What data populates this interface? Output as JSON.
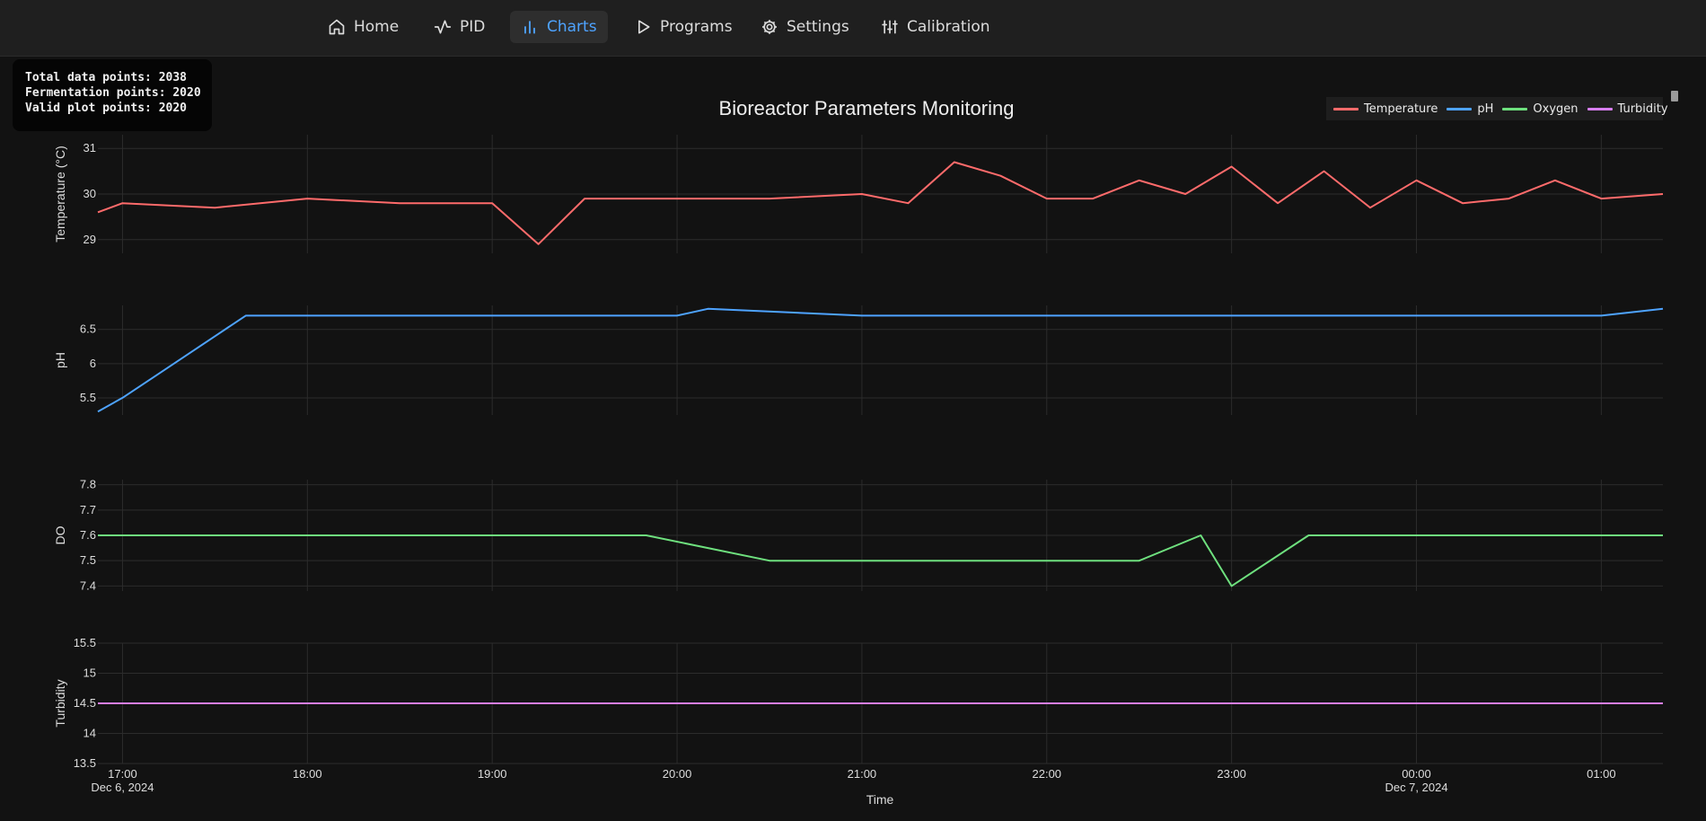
{
  "nav": {
    "items": [
      {
        "label": "Home",
        "icon": "home-icon",
        "active": false
      },
      {
        "label": "PID",
        "icon": "activity-icon",
        "active": false
      },
      {
        "label": "Charts",
        "icon": "bar-chart-icon",
        "active": true
      },
      {
        "label": "Programs",
        "icon": "play-icon",
        "active": false
      },
      {
        "label": "Settings",
        "icon": "gear-icon",
        "active": false
      },
      {
        "label": "Calibration",
        "icon": "sliders-icon",
        "active": false
      }
    ],
    "active_color": "#4ea3ff"
  },
  "stats": {
    "total": "Total data points: 2038",
    "fermentation": "Fermentation points: 2020",
    "valid": "Valid plot points: 2020"
  },
  "chart_data": {
    "type": "line",
    "title": "Bioreactor Parameters Monitoring",
    "xlabel": "Time",
    "x_range": [
      "2024-12-06 16:52",
      "2024-12-07 01:20"
    ],
    "x_ticks": [
      {
        "label": "17:00",
        "sub": "Dec 6, 2024",
        "time": "2024-12-06 17:00"
      },
      {
        "label": "18:00",
        "sub": "",
        "time": "2024-12-06 18:00"
      },
      {
        "label": "19:00",
        "sub": "",
        "time": "2024-12-06 19:00"
      },
      {
        "label": "20:00",
        "sub": "",
        "time": "2024-12-06 20:00"
      },
      {
        "label": "21:00",
        "sub": "",
        "time": "2024-12-06 21:00"
      },
      {
        "label": "22:00",
        "sub": "",
        "time": "2024-12-06 22:00"
      },
      {
        "label": "23:00",
        "sub": "",
        "time": "2024-12-06 23:00"
      },
      {
        "label": "00:00",
        "sub": "Dec 7, 2024",
        "time": "2024-12-07 00:00"
      },
      {
        "label": "01:00",
        "sub": "",
        "time": "2024-12-07 01:00"
      }
    ],
    "legend_position": "top-right",
    "grid": true,
    "series": [
      {
        "name": "Temperature",
        "ylabel": "Temperature (°C)",
        "color": "#ff6b6b",
        "ylim": [
          28.7,
          31.3
        ],
        "yticks": [
          29,
          30,
          31
        ],
        "x": [
          "2024-12-06 16:52",
          "2024-12-06 17:00",
          "2024-12-06 17:30",
          "2024-12-06 18:00",
          "2024-12-06 18:30",
          "2024-12-06 19:00",
          "2024-12-06 19:15",
          "2024-12-06 19:30",
          "2024-12-06 20:00",
          "2024-12-06 20:30",
          "2024-12-06 21:00",
          "2024-12-06 21:15",
          "2024-12-06 21:30",
          "2024-12-06 21:45",
          "2024-12-06 22:00",
          "2024-12-06 22:15",
          "2024-12-06 22:30",
          "2024-12-06 22:45",
          "2024-12-06 23:00",
          "2024-12-06 23:15",
          "2024-12-06 23:30",
          "2024-12-06 23:45",
          "2024-12-07 00:00",
          "2024-12-07 00:15",
          "2024-12-07 00:30",
          "2024-12-07 00:45",
          "2024-12-07 01:00",
          "2024-12-07 01:20"
        ],
        "values": [
          29.6,
          29.8,
          29.7,
          29.9,
          29.8,
          29.8,
          28.9,
          29.9,
          29.9,
          29.9,
          30.0,
          29.8,
          30.7,
          30.4,
          29.9,
          29.9,
          30.3,
          30.0,
          30.6,
          29.8,
          30.5,
          29.7,
          30.3,
          29.8,
          29.9,
          30.3,
          29.9,
          30.0
        ]
      },
      {
        "name": "pH",
        "ylabel": "pH",
        "color": "#4ea3ff",
        "ylim": [
          5.25,
          6.85
        ],
        "yticks": [
          5.5,
          6,
          6.5
        ],
        "x": [
          "2024-12-06 16:52",
          "2024-12-06 17:00",
          "2024-12-06 17:10",
          "2024-12-06 17:20",
          "2024-12-06 17:30",
          "2024-12-06 17:40",
          "2024-12-06 18:00",
          "2024-12-06 19:00",
          "2024-12-06 20:00",
          "2024-12-06 20:10",
          "2024-12-06 21:00",
          "2024-12-06 22:00",
          "2024-12-06 23:00",
          "2024-12-07 00:00",
          "2024-12-07 01:00",
          "2024-12-07 01:20"
        ],
        "values": [
          5.3,
          5.5,
          5.8,
          6.1,
          6.4,
          6.7,
          6.7,
          6.7,
          6.7,
          6.8,
          6.7,
          6.7,
          6.7,
          6.7,
          6.7,
          6.8
        ]
      },
      {
        "name": "Oxygen",
        "ylabel": "DO",
        "color": "#6ee07e",
        "ylim": [
          7.38,
          7.82
        ],
        "yticks": [
          7.4,
          7.5,
          7.6,
          7.7,
          7.8
        ],
        "x": [
          "2024-12-06 16:52",
          "2024-12-06 17:00",
          "2024-12-06 18:00",
          "2024-12-06 18:50",
          "2024-12-06 19:05",
          "2024-12-06 19:15",
          "2024-12-06 19:50",
          "2024-12-06 20:30",
          "2024-12-06 21:30",
          "2024-12-06 22:30",
          "2024-12-06 22:50",
          "2024-12-06 23:00",
          "2024-12-06 23:25",
          "2024-12-07 00:00",
          "2024-12-07 01:00",
          "2024-12-07 01:20"
        ],
        "values": [
          7.6,
          7.6,
          7.6,
          7.6,
          7.6,
          7.6,
          7.6,
          7.5,
          7.5,
          7.5,
          7.6,
          7.4,
          7.6,
          7.6,
          7.6,
          7.6
        ]
      },
      {
        "name": "Turbidity",
        "ylabel": "Turbidity",
        "color": "#d77ef0",
        "ylim": [
          13.5,
          15.5
        ],
        "yticks": [
          13.5,
          14,
          14.5,
          15,
          15.5
        ],
        "x": [
          "2024-12-06 16:52",
          "2024-12-07 01:20"
        ],
        "values": [
          14.5,
          14.5
        ]
      }
    ]
  }
}
